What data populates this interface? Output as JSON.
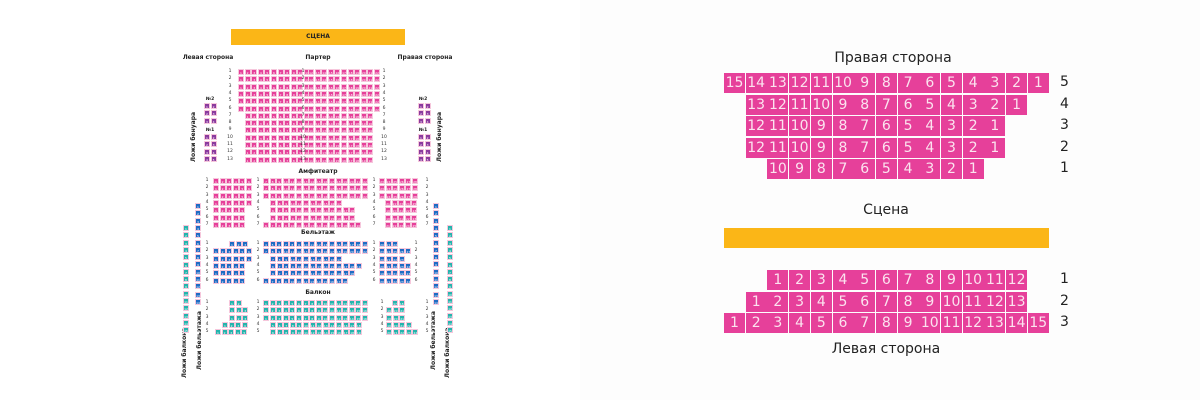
{
  "colors": {
    "stage": "#fbb617",
    "parter": "#e6409a",
    "amfiteatr": "#e6409a",
    "beletazh": "#1f6cc4",
    "balkon": "#25b4ad",
    "loge_benoir": "#8b3a9e"
  },
  "left_scheme": {
    "stage_label": "СЦЕНА",
    "left_side_label": "Левая сторона",
    "right_side_label": "Правая сторона",
    "parter_label": "Партер",
    "amfiteatr_label": "Амфитеатр",
    "beletazh_label": "Бельэтаж",
    "balkon_label": "Балкон",
    "loge_benoir_label": "Ложи бенуара",
    "loge_beletazh_label": "Ложи бельэтажа",
    "loge_balkon_label": "Ложи балкона",
    "loge_no2": "№2",
    "loge_no1": "№1",
    "parter": {
      "rows": [
        "1",
        "2",
        "3",
        "4",
        "5",
        "6",
        "7",
        "8",
        "9",
        "10",
        "11",
        "12",
        "13"
      ],
      "left": [
        [
          1,
          11
        ],
        [
          1,
          11
        ],
        [
          1,
          11
        ],
        [
          1,
          11
        ],
        [
          1,
          11
        ],
        [
          1,
          11
        ],
        [
          1,
          10
        ],
        [
          1,
          10
        ],
        [
          1,
          10
        ],
        [
          1,
          10
        ],
        [
          1,
          10
        ],
        [
          1,
          10
        ],
        [
          1,
          10
        ]
      ],
      "right": [
        [
          12,
          22
        ],
        [
          12,
          22
        ],
        [
          12,
          22
        ],
        [
          12,
          22
        ],
        [
          12,
          22
        ],
        [
          12,
          22
        ],
        [
          11,
          20
        ],
        [
          11,
          20
        ],
        [
          11,
          20
        ],
        [
          11,
          20
        ],
        [
          11,
          20
        ],
        [
          11,
          20
        ],
        [
          11,
          20
        ]
      ]
    },
    "amfiteatr": {
      "rows": [
        "1",
        "2",
        "3",
        "4",
        "5",
        "6",
        "7"
      ],
      "left": [
        [
          1,
          6
        ],
        [
          1,
          6
        ],
        [
          1,
          6
        ],
        [
          1,
          6
        ],
        [
          1,
          5
        ],
        [
          1,
          5
        ],
        [
          1,
          5
        ]
      ],
      "middle": [
        [
          7,
          22
        ],
        [
          7,
          22
        ],
        [
          7,
          22
        ],
        [
          7,
          17
        ],
        [
          6,
          18
        ],
        [
          6,
          18
        ],
        [
          6,
          20
        ]
      ],
      "right": [
        [
          23,
          28
        ],
        [
          23,
          28
        ],
        [
          23,
          28
        ],
        [
          21,
          25
        ],
        [
          19,
          23
        ],
        [
          19,
          23
        ],
        [
          21,
          25
        ]
      ]
    },
    "beletazh": {
      "rows": [
        "1",
        "2",
        "3",
        "4",
        "5",
        "6"
      ],
      "left": [
        [
          1,
          3
        ],
        [
          1,
          6
        ],
        [
          1,
          6
        ],
        [
          1,
          5
        ],
        [
          1,
          5
        ],
        [
          1,
          5
        ]
      ],
      "middle": [
        [
          4,
          19
        ],
        [
          7,
          22
        ],
        [
          7,
          17
        ],
        [
          6,
          19
        ],
        [
          6,
          18
        ],
        [
          6,
          18
        ]
      ],
      "right": [
        [
          20,
          22
        ],
        [
          23,
          27
        ],
        [
          20,
          23
        ],
        [
          20,
          24
        ],
        [
          19,
          23
        ],
        [
          20,
          24
        ]
      ]
    },
    "balkon": {
      "rows": [
        "1",
        "2",
        "3",
        "4",
        "5"
      ],
      "left": [
        [
          1,
          2
        ],
        [
          1,
          3
        ],
        [
          1,
          3
        ],
        [
          1,
          4
        ],
        [
          1,
          5
        ]
      ],
      "middle": [
        [
          1,
          16
        ],
        [
          1,
          16
        ],
        [
          1,
          16
        ],
        [
          5,
          18
        ],
        [
          6,
          19
        ]
      ],
      "right": [
        [
          17,
          18
        ],
        [
          19,
          21
        ],
        [
          19,
          21
        ],
        [
          19,
          22
        ],
        [
          20,
          24
        ]
      ]
    },
    "loge_beletazh": [
      1,
      14
    ],
    "loge_balkon": [
      1,
      15
    ]
  },
  "right_scheme": {
    "top_title": "Правая сторона",
    "top_rows": [
      {
        "row": "5",
        "seats": [
          15,
          14,
          13,
          12,
          11,
          10,
          9,
          8,
          7,
          6,
          5,
          4,
          3,
          2,
          1
        ]
      },
      {
        "row": "4",
        "seats": [
          13,
          12,
          11,
          10,
          9,
          8,
          7,
          6,
          5,
          4,
          3,
          2,
          1
        ]
      },
      {
        "row": "3",
        "seats": [
          12,
          11,
          10,
          9,
          8,
          7,
          6,
          5,
          4,
          3,
          2,
          1
        ]
      },
      {
        "row": "2",
        "seats": [
          12,
          11,
          10,
          9,
          8,
          7,
          6,
          5,
          4,
          3,
          2,
          1
        ]
      },
      {
        "row": "1",
        "seats": [
          10,
          9,
          8,
          7,
          6,
          5,
          4,
          3,
          2,
          1
        ]
      }
    ],
    "stage_label": "Сцена",
    "bottom_rows": [
      {
        "row": "1",
        "seats": [
          1,
          2,
          3,
          4,
          5,
          6,
          7,
          8,
          9,
          10,
          11,
          12
        ]
      },
      {
        "row": "2",
        "seats": [
          1,
          2,
          3,
          4,
          5,
          6,
          7,
          8,
          9,
          10,
          11,
          12,
          13
        ]
      },
      {
        "row": "3",
        "seats": [
          1,
          2,
          3,
          4,
          5,
          6,
          7,
          8,
          9,
          10,
          11,
          12,
          13,
          14,
          15
        ]
      }
    ],
    "bottom_title": "Левая сторона"
  }
}
